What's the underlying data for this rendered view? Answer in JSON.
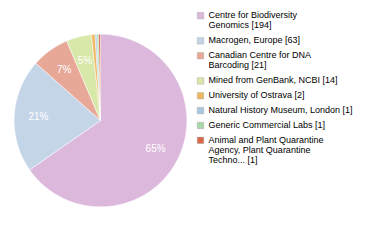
{
  "chart_data": {
    "type": "pie",
    "categories": [
      "Centre for Biodiversity\nGenomics [194]",
      "Macrogen, Europe [63]",
      "Canadian Centre for DNA\nBarcoding [21]",
      "Mined from GenBank, NCBI [14]",
      "University of Ostrava [2]",
      "Natural History Museum, London [1]",
      "Generic Commercial Labs [1]",
      "Animal and Plant Quarantine\nAgency, Plant Quarantine\nTechno... [1]"
    ],
    "values": [
      65.32,
      21.21,
      7.07,
      4.71,
      0.67,
      0.34,
      0.34,
      0.34
    ],
    "value_labels": [
      "65%",
      "21%",
      "7%",
      "5%",
      null,
      null,
      null,
      null
    ],
    "colors": [
      "#ddb8dd",
      "#c5d5e8",
      "#e8a898",
      "#d8e8a8",
      "#f0b860",
      "#a8c8e0",
      "#a8d8a8",
      "#d86848"
    ],
    "data_labels": true,
    "legend": "right"
  }
}
